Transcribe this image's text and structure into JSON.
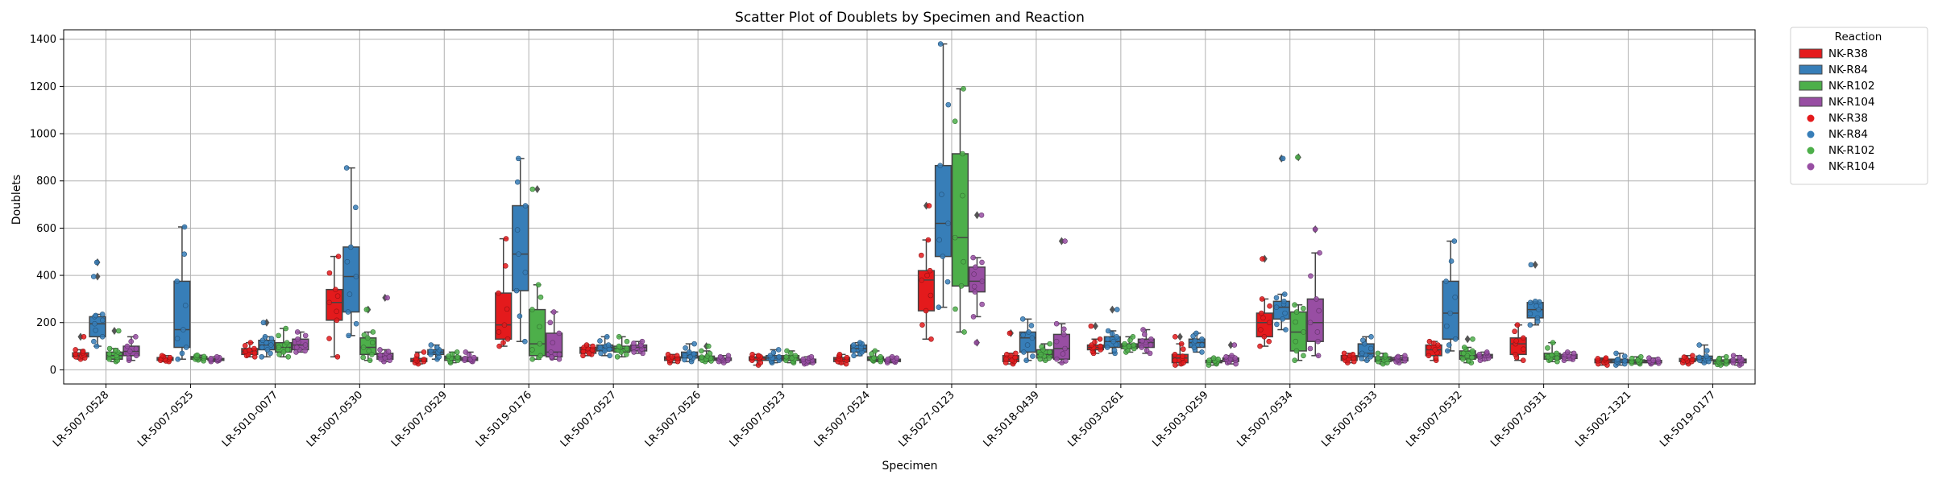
{
  "chart_data": {
    "type": "box+scatter",
    "title": "Scatter Plot of Doublets by Specimen and Reaction",
    "xlabel": "Specimen",
    "ylabel": "Doublets",
    "ylim": [
      -60,
      1440
    ],
    "yticks": [
      0,
      200,
      400,
      600,
      800,
      1000,
      1200,
      1400
    ],
    "grid": true,
    "legend": {
      "title": "Reaction",
      "placement": "outside-top-right"
    },
    "series": [
      {
        "name": "NK-R38",
        "color": "#e41a1c"
      },
      {
        "name": "NK-R84",
        "color": "#377eb8"
      },
      {
        "name": "NK-R102",
        "color": "#4daf4a"
      },
      {
        "name": "NK-R104",
        "color": "#984ea3"
      }
    ],
    "categories": [
      "LR-5007-0528",
      "LR-5007-0525",
      "LR-5010-0077",
      "LR-5007-0530",
      "LR-5007-0529",
      "LR-5019-0176",
      "LR-5007-0527",
      "LR-5007-0526",
      "LR-5007-0523",
      "LR-5007-0524",
      "LR-5027-0123",
      "LR-5018-0439",
      "LR-5003-0261",
      "LR-5003-0259",
      "LR-5007-0534",
      "LR-5007-0533",
      "LR-5007-0532",
      "LR-5007-0531",
      "LR-5002-1321",
      "LR-5019-0177"
    ],
    "boxes": [
      [
        [
          45,
          55,
          62,
          72,
          85,
          [
            140
          ]
        ],
        [
          100,
          140,
          195,
          225,
          235,
          [
            395,
            455
          ]
        ],
        [
          35,
          45,
          60,
          75,
          90,
          [
            165
          ]
        ],
        [
          40,
          60,
          78,
          100,
          140,
          []
        ]
      ],
      [
        [
          35,
          40,
          45,
          52,
          60,
          []
        ],
        [
          45,
          95,
          170,
          375,
          605,
          []
        ],
        [
          38,
          45,
          52,
          56,
          62,
          []
        ],
        [
          35,
          40,
          43,
          48,
          55,
          []
        ]
      ],
      [
        [
          55,
          65,
          78,
          90,
          115,
          []
        ],
        [
          55,
          85,
          105,
          125,
          140,
          [
            200
          ]
        ],
        [
          55,
          75,
          95,
          115,
          175,
          []
        ],
        [
          75,
          85,
          105,
          130,
          160,
          []
        ]
      ],
      [
        [
          55,
          210,
          285,
          340,
          480,
          []
        ],
        [
          145,
          245,
          395,
          520,
          855,
          []
        ],
        [
          40,
          65,
          95,
          135,
          160,
          [
            255
          ]
        ],
        [
          35,
          45,
          55,
          70,
          85,
          [
            305
          ]
        ]
      ],
      [
        [
          25,
          35,
          40,
          48,
          75,
          []
        ],
        [
          45,
          65,
          75,
          85,
          105,
          []
        ],
        [
          30,
          40,
          50,
          58,
          75,
          []
        ],
        [
          35,
          40,
          45,
          52,
          75,
          []
        ]
      ],
      [
        [
          100,
          130,
          190,
          325,
          555,
          []
        ],
        [
          120,
          335,
          490,
          695,
          895,
          []
        ],
        [
          45,
          60,
          110,
          255,
          360,
          [
            765
          ]
        ],
        [
          45,
          55,
          75,
          155,
          245,
          []
        ]
      ],
      [
        [
          60,
          70,
          85,
          95,
          105,
          []
        ],
        [
          60,
          80,
          95,
          105,
          140,
          []
        ],
        [
          55,
          75,
          90,
          100,
          140,
          []
        ],
        [
          70,
          80,
          95,
          105,
          120,
          []
        ]
      ],
      [
        [
          30,
          40,
          48,
          55,
          65,
          []
        ],
        [
          35,
          50,
          60,
          75,
          110,
          []
        ],
        [
          35,
          40,
          50,
          58,
          80,
          [
            100
          ]
        ],
        [
          30,
          40,
          45,
          50,
          60,
          []
        ]
      ],
      [
        [
          20,
          40,
          50,
          55,
          65,
          []
        ],
        [
          30,
          40,
          50,
          60,
          85,
          []
        ],
        [
          30,
          40,
          50,
          60,
          80,
          []
        ],
        [
          25,
          30,
          38,
          45,
          55,
          []
        ]
      ],
      [
        [
          25,
          35,
          45,
          52,
          65,
          []
        ],
        [
          60,
          75,
          90,
          105,
          115,
          []
        ],
        [
          35,
          40,
          45,
          55,
          80,
          []
        ],
        [
          30,
          35,
          40,
          45,
          55,
          []
        ]
      ],
      [
        [
          130,
          250,
          380,
          420,
          550,
          [
            695
          ]
        ],
        [
          265,
          480,
          620,
          865,
          1380,
          []
        ],
        [
          160,
          355,
          560,
          915,
          1190,
          []
        ],
        [
          225,
          330,
          375,
          435,
          475,
          [
            115,
            655
          ]
        ]
      ],
      [
        [
          25,
          35,
          45,
          60,
          70,
          [
            155
          ]
        ],
        [
          40,
          75,
          135,
          160,
          215,
          []
        ],
        [
          40,
          50,
          65,
          85,
          110,
          []
        ],
        [
          30,
          45,
          90,
          150,
          195,
          [
            545
          ]
        ]
      ],
      [
        [
          70,
          85,
          95,
          105,
          130,
          [
            185
          ]
        ],
        [
          70,
          95,
          120,
          140,
          165,
          [
            255
          ]
        ],
        [
          75,
          90,
          100,
          110,
          140,
          []
        ],
        [
          70,
          95,
          115,
          130,
          170,
          []
        ]
      ],
      [
        [
          20,
          30,
          50,
          65,
          110,
          [
            140
          ]
        ],
        [
          75,
          95,
          115,
          130,
          155,
          []
        ],
        [
          20,
          30,
          35,
          40,
          50,
          []
        ],
        [
          25,
          35,
          45,
          50,
          60,
          [
            105
          ]
        ]
      ],
      [
        [
          100,
          140,
          200,
          240,
          300,
          [
            470
          ]
        ],
        [
          170,
          215,
          265,
          290,
          320,
          [
            895
          ]
        ],
        [
          40,
          80,
          160,
          245,
          275,
          [
            900
          ]
        ],
        [
          60,
          120,
          200,
          300,
          495,
          [
            595
          ]
        ]
      ],
      [
        [
          30,
          40,
          50,
          60,
          70,
          []
        ],
        [
          40,
          55,
          70,
          110,
          140,
          []
        ],
        [
          25,
          35,
          45,
          55,
          70,
          []
        ],
        [
          30,
          38,
          45,
          52,
          60,
          []
        ]
      ],
      [
        [
          40,
          60,
          85,
          105,
          120,
          []
        ],
        [
          80,
          130,
          240,
          375,
          545,
          []
        ],
        [
          30,
          45,
          60,
          80,
          95,
          [
            130
          ]
        ],
        [
          40,
          50,
          60,
          65,
          75,
          []
        ]
      ],
      [
        [
          40,
          65,
          110,
          135,
          190,
          []
        ],
        [
          190,
          220,
          255,
          285,
          290,
          [
            445
          ]
        ],
        [
          35,
          45,
          55,
          70,
          115,
          []
        ],
        [
          40,
          48,
          55,
          65,
          75,
          []
        ]
      ],
      [
        [
          20,
          30,
          38,
          45,
          50,
          []
        ],
        [
          20,
          30,
          38,
          45,
          70,
          []
        ],
        [
          25,
          30,
          35,
          42,
          55,
          []
        ],
        [
          25,
          30,
          35,
          40,
          50,
          []
        ]
      ],
      [
        [
          25,
          35,
          40,
          48,
          60,
          []
        ],
        [
          30,
          40,
          48,
          58,
          105,
          []
        ],
        [
          20,
          25,
          35,
          42,
          55,
          []
        ],
        [
          20,
          30,
          40,
          45,
          60,
          []
        ]
      ]
    ]
  }
}
